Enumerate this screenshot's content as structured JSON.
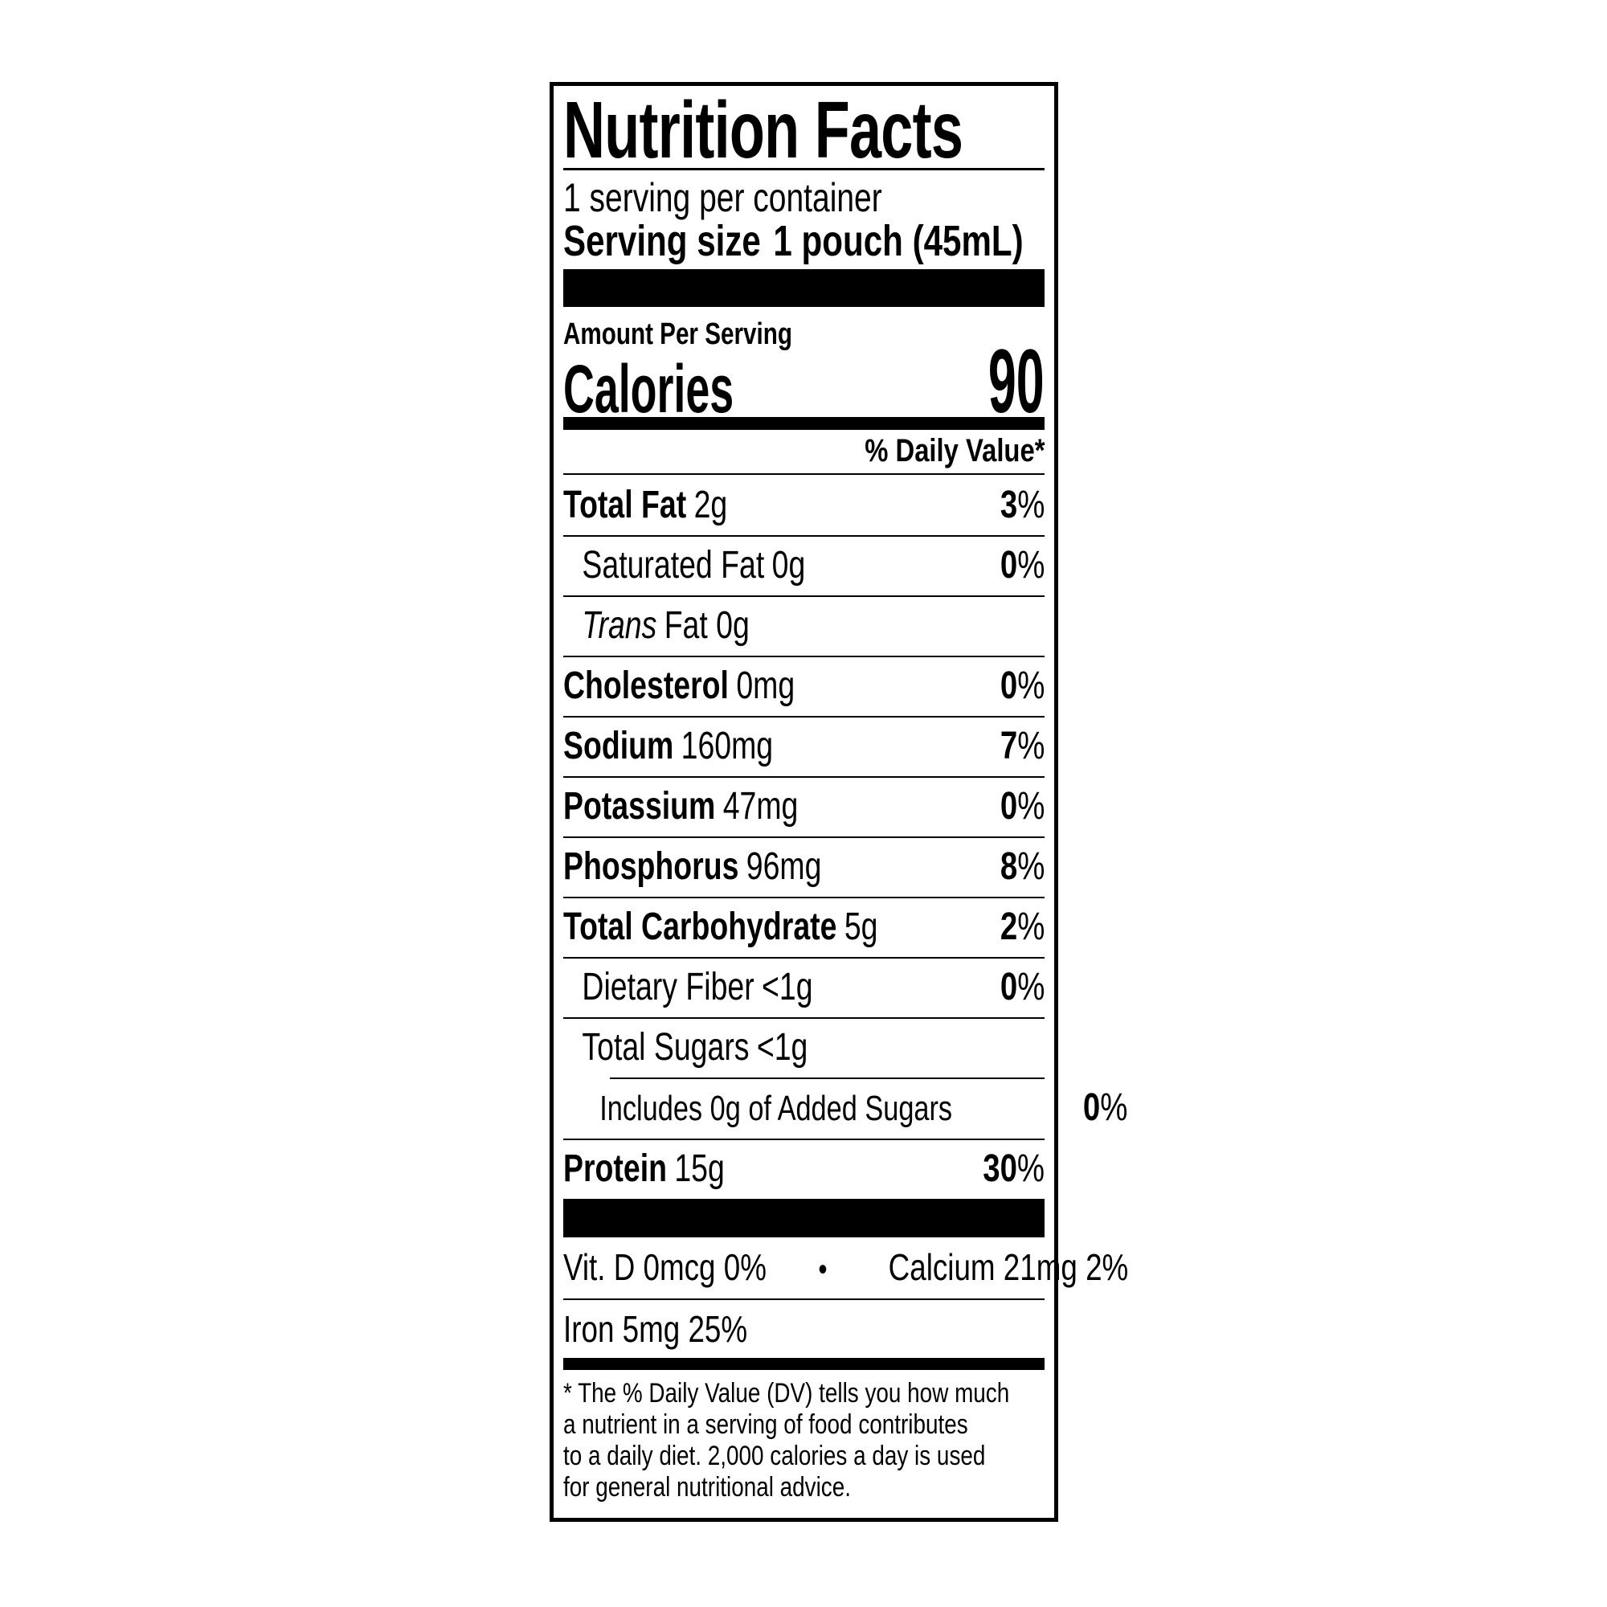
{
  "label": {
    "title": "Nutrition Facts",
    "servings_per_container": "1 serving per container",
    "serving_size_label": "Serving size",
    "serving_size_value": "1 pouch (45mL)",
    "amount_per_serving": "Amount Per Serving",
    "calories_label": "Calories",
    "calories_value": "90",
    "daily_value_header": "% Daily Value*",
    "rows": [
      {
        "name": "Total Fat",
        "amount": "2g",
        "dv": "3",
        "pct": "%"
      },
      {
        "name": "Saturated Fat",
        "amount": "0g",
        "dv": "0",
        "pct": "%"
      },
      {
        "name": "Trans",
        "amount": "Fat 0g",
        "dv": "",
        "pct": ""
      },
      {
        "name": "Cholesterol",
        "amount": "0mg",
        "dv": "0",
        "pct": "%"
      },
      {
        "name": "Sodium",
        "amount": "160mg",
        "dv": "7",
        "pct": "%"
      },
      {
        "name": "Potassium",
        "amount": "47mg",
        "dv": "0",
        "pct": "%"
      },
      {
        "name": "Phosphorus",
        "amount": "96mg",
        "dv": "8",
        "pct": "%"
      },
      {
        "name": "Total Carbohydrate",
        "amount": "5g",
        "dv": "2",
        "pct": "%"
      },
      {
        "name": "Dietary Fiber",
        "amount": "<1g",
        "dv": "0",
        "pct": "%"
      },
      {
        "name": "Total Sugars",
        "amount": "<1g",
        "dv": "",
        "pct": ""
      },
      {
        "name": "Includes 0g of Added Sugars",
        "amount": "",
        "dv": "0",
        "pct": "%"
      },
      {
        "name": "Protein",
        "amount": "15g",
        "dv": "30",
        "pct": "%"
      }
    ],
    "micronutrients": {
      "vitamin_d": "Vit. D 0mcg 0%",
      "separator": "•",
      "calcium": "Calcium 21mg 2%",
      "iron": "Iron 5mg 25%"
    },
    "footnote_lines": [
      "* The % Daily Value (DV) tells you how much",
      "a nutrient in a serving of food contributes",
      "to a daily diet. 2,000 calories a day is used",
      "for general nutritional advice."
    ]
  }
}
